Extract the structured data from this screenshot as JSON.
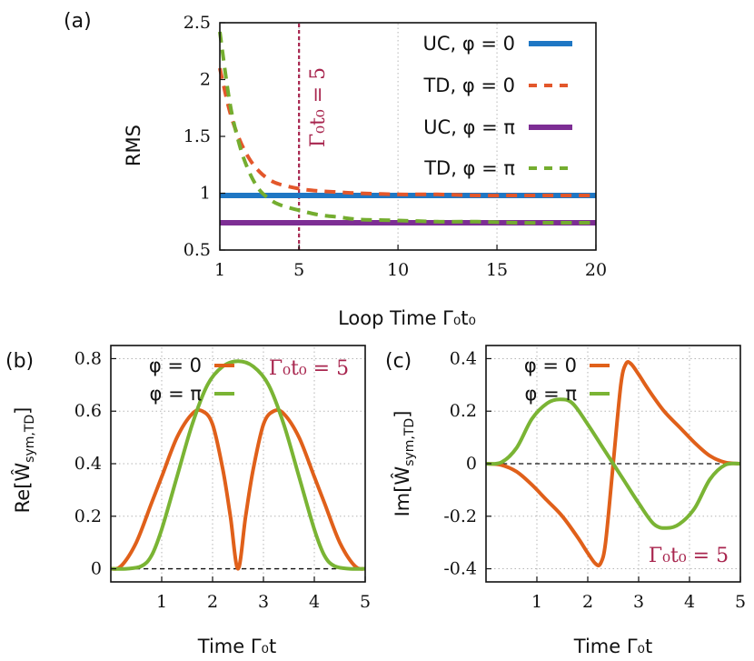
{
  "colors": {
    "blue": "#1f77c4",
    "orange": "#e3572b",
    "purple": "#7d2e94",
    "green": "#74ad2f",
    "crimson": "#a8254e",
    "fit_orange": "#e0601a",
    "fit_green": "#7ab434"
  },
  "chart_data": [
    {
      "panel_label": "(a)",
      "type": "line",
      "xlabel": "Loop Time Γ₀t₀",
      "ylabel": "RMS",
      "xlim": [
        1,
        20
      ],
      "ylim": [
        0.5,
        2.5
      ],
      "xticks": [
        "1",
        "5",
        "10",
        "15",
        "20"
      ],
      "yticks": [
        "0.5",
        "1",
        "1.5",
        "2",
        "2.5"
      ],
      "vline": {
        "x": 5,
        "label": "Γ₀t₀ = 5"
      },
      "grid": true,
      "legend_position": "top-right",
      "series": [
        {
          "name": "UC, φ = 0",
          "style": "solid",
          "color": "blue",
          "x": [
            1,
            20
          ],
          "y": [
            0.98,
            0.98
          ]
        },
        {
          "name": "TD, φ = 0",
          "style": "dashed",
          "color": "orange",
          "x": [
            1,
            1.5,
            2,
            2.5,
            3,
            3.5,
            4,
            5,
            6,
            7,
            8,
            10,
            12,
            14,
            16,
            18,
            20
          ],
          "y": [
            2.1,
            1.72,
            1.47,
            1.3,
            1.19,
            1.12,
            1.08,
            1.04,
            1.02,
            1.01,
            1.0,
            0.99,
            0.99,
            0.98,
            0.98,
            0.98,
            0.98
          ]
        },
        {
          "name": "UC, φ = π",
          "style": "solid",
          "color": "purple",
          "x": [
            1,
            20
          ],
          "y": [
            0.74,
            0.74
          ]
        },
        {
          "name": "TD, φ = π",
          "style": "dashed",
          "color": "green",
          "x": [
            1,
            1.5,
            2,
            2.5,
            3,
            3.5,
            4,
            5,
            6,
            7,
            8,
            10,
            12,
            14,
            16,
            18,
            20
          ],
          "y": [
            2.42,
            1.8,
            1.42,
            1.18,
            1.03,
            0.95,
            0.9,
            0.85,
            0.81,
            0.79,
            0.77,
            0.76,
            0.75,
            0.75,
            0.74,
            0.74,
            0.74
          ]
        }
      ]
    },
    {
      "panel_label": "(b)",
      "type": "line",
      "xlabel": "Time Γ₀t",
      "ylabel": "Re[Ŵ",
      "ylabel_sub": "sym,TD",
      "xlim": [
        0,
        5
      ],
      "ylim": [
        -0.05,
        0.85
      ],
      "xticks": [
        "1",
        "2",
        "3",
        "4",
        "5"
      ],
      "yticks": [
        "0",
        "0.2",
        "0.4",
        "0.6",
        "0.8"
      ],
      "annotation": "Γ₀t₀ = 5",
      "grid": true,
      "legend_position": "top-left",
      "series": [
        {
          "name": "φ = 0",
          "color": "fit_orange",
          "x": [
            0,
            0.2,
            0.5,
            0.8,
            1.0,
            1.3,
            1.6,
            1.8,
            2.0,
            2.2,
            2.35,
            2.5,
            2.65,
            2.8,
            3.0,
            3.2,
            3.4,
            3.7,
            4.0,
            4.2,
            4.5,
            4.8,
            5.0
          ],
          "y": [
            0,
            0.01,
            0.1,
            0.25,
            0.35,
            0.5,
            0.59,
            0.6,
            0.55,
            0.38,
            0.2,
            0,
            0.2,
            0.38,
            0.55,
            0.6,
            0.59,
            0.5,
            0.35,
            0.25,
            0.1,
            0.01,
            0
          ]
        },
        {
          "name": "φ = π",
          "color": "fit_green",
          "x": [
            0,
            0.3,
            0.6,
            0.8,
            1.0,
            1.3,
            1.6,
            1.9,
            2.2,
            2.5,
            2.8,
            3.1,
            3.4,
            3.7,
            4.0,
            4.2,
            4.4,
            4.7,
            5.0
          ],
          "y": [
            0,
            0,
            0.01,
            0.05,
            0.15,
            0.35,
            0.55,
            0.7,
            0.77,
            0.79,
            0.77,
            0.7,
            0.55,
            0.35,
            0.15,
            0.05,
            0.01,
            0,
            0
          ]
        }
      ]
    },
    {
      "panel_label": "(c)",
      "type": "line",
      "xlabel": "Time Γ₀t",
      "ylabel": "Im[Ŵ",
      "ylabel_sub": "sym,TD",
      "xlim": [
        0,
        5
      ],
      "ylim": [
        -0.45,
        0.45
      ],
      "xticks": [
        "1",
        "2",
        "3",
        "4",
        "5"
      ],
      "yticks": [
        "-0.4",
        "-0.2",
        "0",
        "0.2",
        "0.4"
      ],
      "annotation": "Γ₀t₀ = 5",
      "grid": true,
      "legend_position": "top-left",
      "series": [
        {
          "name": "φ = 0",
          "color": "fit_orange",
          "x": [
            0,
            0.3,
            0.6,
            0.9,
            1.2,
            1.5,
            1.8,
            2.0,
            2.15,
            2.25,
            2.35,
            2.5,
            2.65,
            2.75,
            2.85,
            3.0,
            3.2,
            3.5,
            3.8,
            4.1,
            4.4,
            4.7,
            5.0
          ],
          "y": [
            0,
            -0.005,
            -0.03,
            -0.08,
            -0.14,
            -0.2,
            -0.28,
            -0.34,
            -0.38,
            -0.38,
            -0.3,
            0,
            0.3,
            0.38,
            0.38,
            0.34,
            0.28,
            0.2,
            0.14,
            0.08,
            0.03,
            0.005,
            0
          ]
        },
        {
          "name": "φ = π",
          "color": "fit_green",
          "x": [
            0,
            0.3,
            0.6,
            0.9,
            1.2,
            1.45,
            1.7,
            2.0,
            2.3,
            2.5,
            2.7,
            3.0,
            3.3,
            3.55,
            3.8,
            4.1,
            4.4,
            4.7,
            5.0
          ],
          "y": [
            0,
            0.005,
            0.06,
            0.17,
            0.23,
            0.245,
            0.23,
            0.15,
            0.06,
            0,
            -0.06,
            -0.15,
            -0.23,
            -0.245,
            -0.23,
            -0.17,
            -0.06,
            -0.005,
            0
          ]
        }
      ]
    }
  ]
}
